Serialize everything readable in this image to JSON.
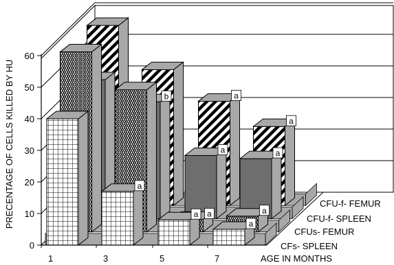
{
  "chart_data": {
    "type": "bar",
    "subtype": "3d-grouped-bar",
    "title": "",
    "xlabel": "AGE IN MONTHS",
    "ylabel": "PRECENTAGE OF CELLS KILLED BY HU",
    "ylim": [
      0,
      60
    ],
    "yticks": [
      "0",
      "10",
      "20",
      "30",
      "40",
      "50",
      "60"
    ],
    "categories": [
      "1",
      "3",
      "5",
      "7"
    ],
    "grid": true,
    "series": [
      {
        "name": "CFs- SPLEEN",
        "values": [
          40,
          17,
          8,
          5
        ],
        "pattern": "grid",
        "annotations": [
          "",
          "a",
          "a",
          "a"
        ]
      },
      {
        "name": "CFUs- FEMUR",
        "values": [
          57,
          45,
          4,
          5
        ],
        "pattern": "zigzag",
        "annotations": [
          "",
          "",
          "a",
          "a"
        ]
      },
      {
        "name": "CFU-f- SPLEEN",
        "values": null,
        "pattern": "dark",
        "annotations": [
          "",
          "b",
          "a",
          "a"
        ]
      },
      {
        "name": "CFU-f- FEMUR",
        "values": [
          57,
          43,
          33,
          25
        ],
        "pattern": "diagonal",
        "annotations": [
          "",
          "",
          "a",
          "a"
        ]
      }
    ],
    "colors": {
      "back": "#a8a8a8",
      "front": "#ffffff",
      "dark": "#6e6e6e",
      "wall": "#ffffff"
    }
  }
}
